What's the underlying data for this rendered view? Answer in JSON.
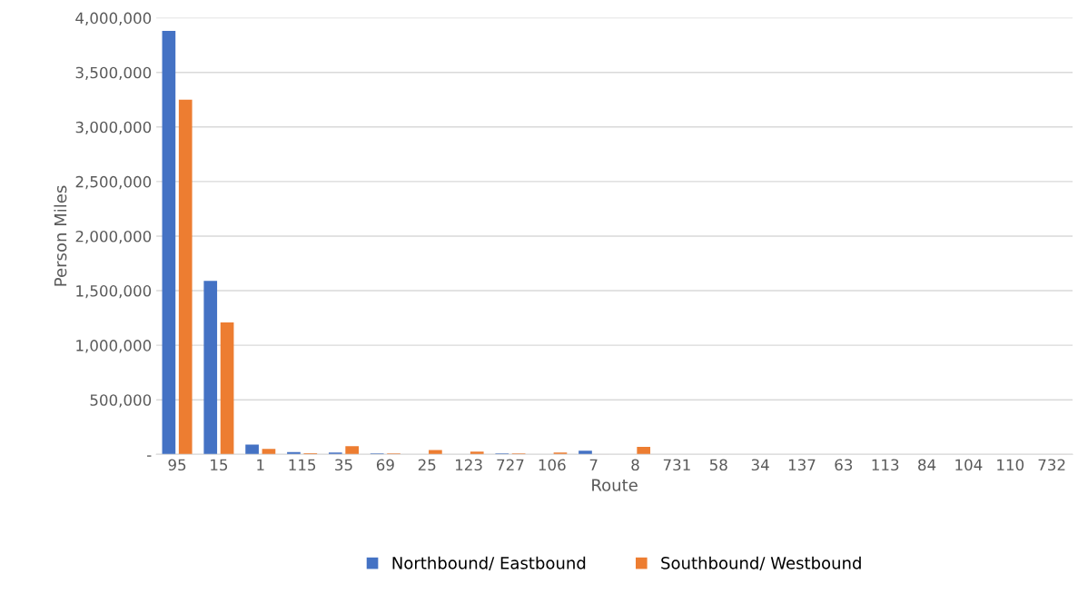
{
  "chart_data": {
    "type": "bar",
    "xlabel": "Route",
    "ylabel": "Person Miles",
    "categories": [
      "95",
      "15",
      "1",
      "115",
      "35",
      "69",
      "25",
      "123",
      "727",
      "106",
      "7",
      "8",
      "731",
      "58",
      "34",
      "137",
      "63",
      "113",
      "84",
      "104",
      "110",
      "732"
    ],
    "series": [
      {
        "name": "Northbound/ Eastbound",
        "color": "#4472c4",
        "values": [
          3880000,
          1590000,
          90000,
          22000,
          17000,
          8000,
          0,
          0,
          8000,
          0,
          33000,
          0,
          0,
          0,
          0,
          0,
          0,
          0,
          0,
          0,
          0,
          0
        ]
      },
      {
        "name": "Southbound/ Westbound",
        "color": "#ed7d31",
        "values": [
          3250000,
          1210000,
          50000,
          10000,
          75000,
          8000,
          39000,
          25000,
          8000,
          17000,
          2000,
          70000,
          0,
          0,
          0,
          0,
          0,
          0,
          0,
          0,
          0,
          2000
        ]
      }
    ],
    "ylim": [
      0,
      4000000
    ],
    "yticks": [
      {
        "value": 0,
        "label": "-"
      },
      {
        "value": 500000,
        "label": "500,000"
      },
      {
        "value": 1000000,
        "label": "1,000,000"
      },
      {
        "value": 1500000,
        "label": "1,500,000"
      },
      {
        "value": 2000000,
        "label": "2,000,000"
      },
      {
        "value": 2500000,
        "label": "2,500,000"
      },
      {
        "value": 3000000,
        "label": "3,000,000"
      },
      {
        "value": 3500000,
        "label": "3,500,000"
      },
      {
        "value": 4000000,
        "label": "4,000,000"
      }
    ],
    "grid": "y",
    "legend": "bottom"
  }
}
